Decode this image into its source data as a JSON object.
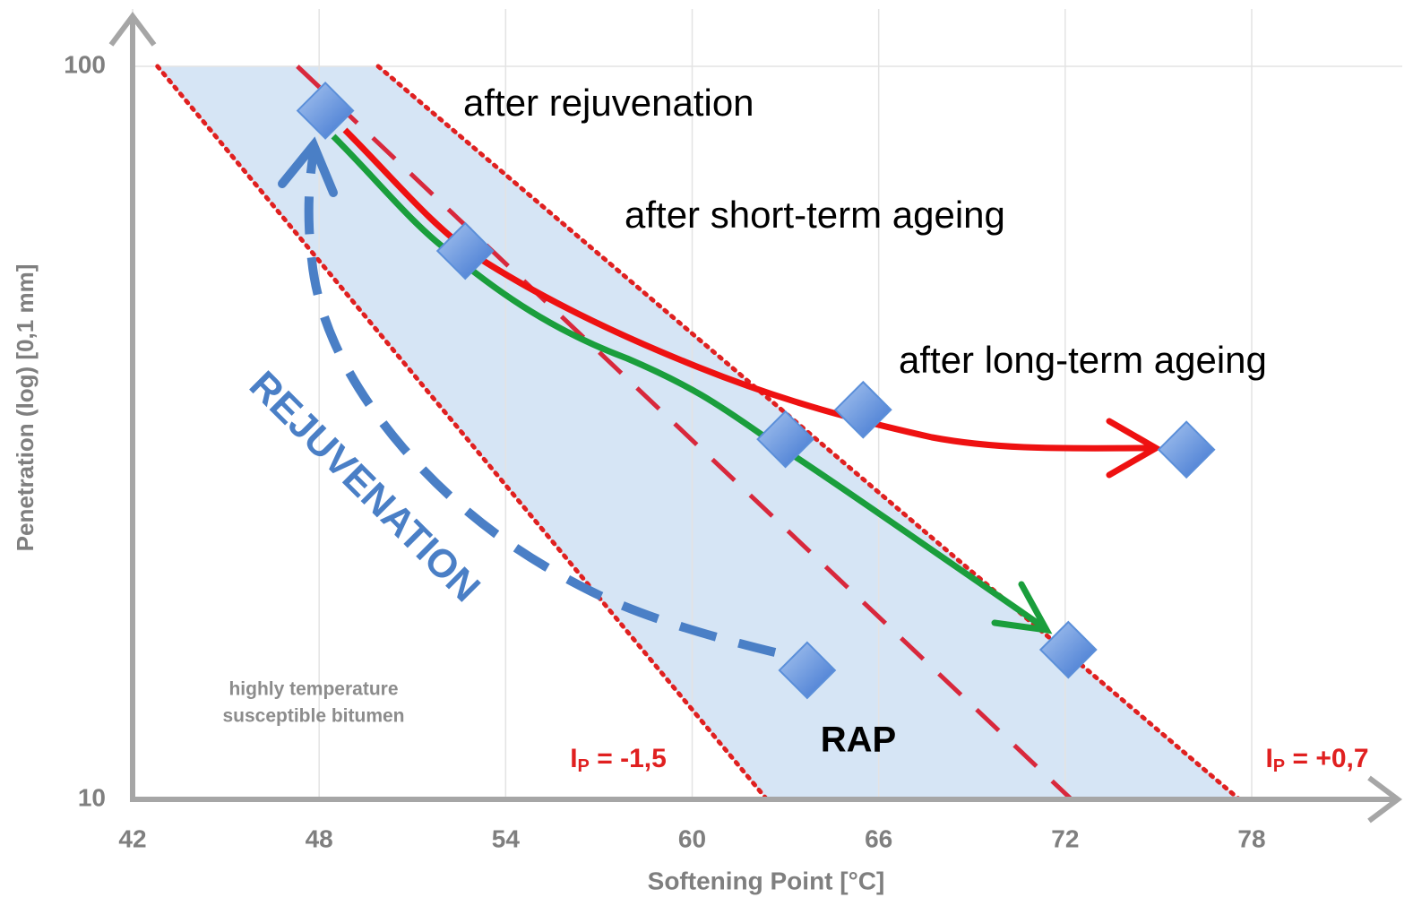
{
  "chart_data": {
    "type": "scatter",
    "xlabel": "Softening Point [°C]",
    "ylabel": "Penetration (log) [0,1 mm]",
    "xlim": [
      42,
      78
    ],
    "ylim": [
      10,
      100
    ],
    "log_y": true,
    "xticks": [
      42,
      48,
      54,
      60,
      66,
      72,
      78
    ],
    "yticks": [
      10,
      100
    ],
    "grid": true,
    "x": [
      48.2,
      52.7,
      65.5,
      63,
      75.9,
      72.1,
      63.7
    ],
    "values": [
      87,
      56,
      34,
      31,
      30,
      16,
      15
    ],
    "color": "#5b8fd9",
    "reference_lines": [
      {
        "label": {
          "main": "I",
          "sub": "P",
          "rest": " = -1,5"
        },
        "x": [
          42.8,
          62.4
        ],
        "y": [
          100,
          10
        ],
        "color": "#e02020",
        "style": "dotted"
      },
      {
        "label": {
          "main": "I",
          "sub": "P",
          "rest": " = +0,7"
        },
        "x": [
          49.9,
          77.6
        ],
        "y": [
          100,
          10
        ],
        "color": "#e02020",
        "style": "dotted"
      },
      {
        "x": [
          47.3,
          72.2
        ],
        "y": [
          100,
          10
        ],
        "color": "#d8283c",
        "style": "dashed"
      }
    ],
    "annotations": [
      "after rejuvenation",
      "after short-term ageing",
      "after long-term ageing",
      "REJUVENATION",
      "highly temperature",
      "susceptible bitumen",
      "RAP"
    ]
  }
}
